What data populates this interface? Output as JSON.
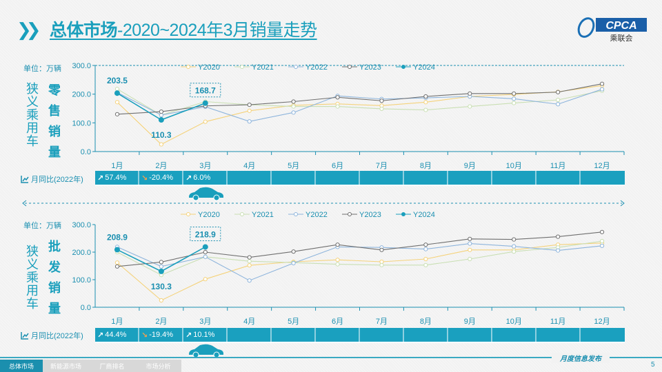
{
  "header": {
    "title_bold": "总体市场",
    "title_rest": "-2020~2024年3月销量走势",
    "logo_text": "CPCA",
    "logo_sub": "乘联会",
    "chevron_icon": "double-chevron-right-icon"
  },
  "colors": {
    "accent": "#1aa0bf",
    "Y2020": "#f5d27a",
    "Y2021": "#c9dfb3",
    "Y2022": "#8db4dc",
    "Y2023": "#6e6e6e",
    "Y2024": "#1a9fbc"
  },
  "retail": {
    "unit": "单位：万辆",
    "category": "狭义乘用车",
    "metric": "零售销量",
    "yoy_label": "月同比(2022年)",
    "yoy": [
      {
        "value": "57.4%",
        "trend": "up"
      },
      {
        "value": "-20.4%",
        "trend": "down"
      },
      {
        "value": "6.0%",
        "trend": "up"
      },
      {
        "value": ""
      },
      {
        "value": ""
      },
      {
        "value": ""
      },
      {
        "value": ""
      },
      {
        "value": ""
      },
      {
        "value": ""
      },
      {
        "value": ""
      },
      {
        "value": ""
      },
      {
        "value": ""
      }
    ]
  },
  "wholesale": {
    "unit": "单位：万辆",
    "category": "狭义乘用车",
    "metric": "批发销量",
    "yoy_label": "月同比(2022年)",
    "yoy": [
      {
        "value": "44.4%",
        "trend": "up"
      },
      {
        "value": "-19.4%",
        "trend": "down"
      },
      {
        "value": "10.1%",
        "trend": "up"
      },
      {
        "value": ""
      },
      {
        "value": ""
      },
      {
        "value": ""
      },
      {
        "value": ""
      },
      {
        "value": ""
      },
      {
        "value": ""
      },
      {
        "value": ""
      },
      {
        "value": ""
      },
      {
        "value": ""
      }
    ]
  },
  "chart_data": [
    {
      "type": "line",
      "categories": [
        "1月",
        "2月",
        "3月",
        "4月",
        "5月",
        "6月",
        "7月",
        "8月",
        "9月",
        "10月",
        "11月",
        "12月"
      ],
      "ylim": [
        0,
        300
      ],
      "yticks": [
        "0.0",
        "100.0",
        "200.0",
        "300.0"
      ],
      "legend": "top",
      "series": [
        {
          "name": "Y2020",
          "values": [
            172,
            25,
            104,
            142,
            161,
            166,
            160,
            172,
            192,
            199,
            208,
            230
          ]
        },
        {
          "name": "Y2021",
          "values": [
            218,
            127,
            174,
            163,
            157,
            157,
            149,
            145,
            157,
            169,
            180,
            212
          ]
        },
        {
          "name": "Y2022",
          "values": [
            206,
            127,
            156,
            105,
            136,
            194,
            183,
            187,
            192,
            184,
            165,
            217
          ]
        },
        {
          "name": "Y2023",
          "values": [
            130,
            139,
            159,
            163,
            174,
            189,
            177,
            192,
            202,
            202,
            207,
            236
          ]
        },
        {
          "name": "Y2024",
          "values": [
            203.5,
            110.3,
            168.7
          ]
        }
      ],
      "labels": [
        "203.5",
        "110.3",
        "168.7"
      ]
    },
    {
      "type": "line",
      "categories": [
        "1月",
        "2月",
        "3月",
        "4月",
        "5月",
        "6月",
        "7月",
        "8月",
        "9月",
        "10月",
        "11月",
        "12月"
      ],
      "ylim": [
        0,
        300
      ],
      "yticks": [
        "0.0",
        "100.0",
        "200.0",
        "300.0"
      ],
      "legend": "top",
      "series": [
        {
          "name": "Y2020",
          "values": [
            162,
            25,
            102,
            152,
            165,
            172,
            165,
            175,
            208,
            208,
            227,
            233
          ]
        },
        {
          "name": "Y2021",
          "values": [
            200,
            117,
            183,
            167,
            162,
            156,
            153,
            153,
            175,
            202,
            217,
            240
          ]
        },
        {
          "name": "Y2022",
          "values": [
            219,
            148,
            183,
            97,
            160,
            219,
            217,
            211,
            231,
            221,
            206,
            223
          ]
        },
        {
          "name": "Y2023",
          "values": [
            148,
            164,
            200,
            181,
            202,
            227,
            208,
            227,
            248,
            246,
            256,
            273
          ]
        },
        {
          "name": "Y2024",
          "values": [
            208.9,
            130.3,
            218.9
          ]
        }
      ],
      "labels": [
        "208.9",
        "130.3",
        "218.9"
      ]
    }
  ],
  "footer": {
    "tabs": [
      "总体市场",
      "新能源市场",
      "厂商排名",
      "市场分析"
    ],
    "publication": "月度信息发布",
    "page": "5"
  }
}
